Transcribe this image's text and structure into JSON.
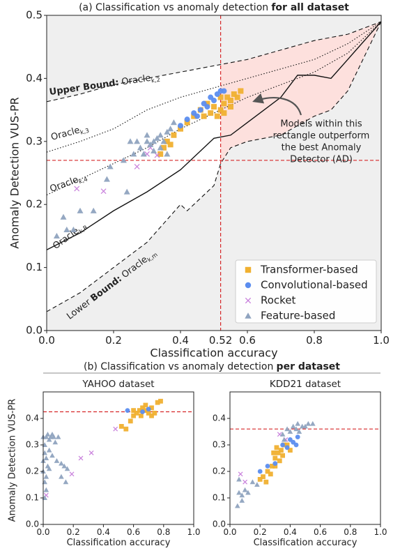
{
  "chart_data": [
    {
      "type": "scatter",
      "title": {
        "pre": "(a) Classification vs anomaly detection",
        "bold": "for all dataset"
      },
      "xlabel": "Classification accuracy",
      "ylabel": "Anomaly Detection VUS-PR",
      "xlim": [
        0,
        1
      ],
      "ylim": [
        0,
        0.5
      ],
      "xticks": [
        {
          "value": 0,
          "label": "0.0"
        },
        0.2,
        0.4,
        0.6,
        0.8,
        {
          "value": 1,
          "label": "1.0"
        }
      ],
      "yticks": [
        {
          "value": 0,
          "label": "0.0"
        },
        0.1,
        0.2,
        0.3,
        0.4,
        0.5
      ],
      "vline": 0.52,
      "hline": 0.27,
      "ref_color": "#d62728",
      "annotation": [
        "Models within this",
        "rectangle outperform",
        "the best Anomaly",
        "Detector (AD)"
      ],
      "legend": "lower right",
      "lines": [
        {
          "label": {
            "bold": "Upper Bound:",
            "name": "Oracle",
            "sub": "k,2"
          },
          "style": "dashed",
          "x": [
            0,
            0.1,
            0.2,
            0.3,
            0.4,
            0.5,
            0.6,
            0.7,
            0.8,
            0.9,
            1
          ],
          "y": [
            0.363,
            0.375,
            0.39,
            0.4,
            0.41,
            0.42,
            0.43,
            0.445,
            0.46,
            0.47,
            0.49
          ]
        },
        {
          "label": {
            "name": "Oracle",
            "sub": "k,3"
          },
          "style": "dotted",
          "x": [
            0,
            0.1,
            0.2,
            0.3,
            0.4,
            0.5,
            0.6,
            0.7,
            0.8,
            0.9,
            1
          ],
          "y": [
            0.283,
            0.3,
            0.32,
            0.35,
            0.37,
            0.385,
            0.4,
            0.415,
            0.43,
            0.455,
            0.49
          ]
        },
        {
          "label": {
            "name": "Oracle",
            "sub": "k,4"
          },
          "style": "dotted",
          "x": [
            0,
            0.1,
            0.2,
            0.3,
            0.4,
            0.5,
            0.6,
            0.7,
            0.8,
            0.9,
            1
          ],
          "y": [
            0.215,
            0.24,
            0.265,
            0.29,
            0.32,
            0.345,
            0.37,
            0.39,
            0.41,
            0.44,
            0.49
          ]
        },
        {
          "label": {
            "name": "Oracle",
            "sub": "k,R"
          },
          "style": "solid",
          "x": [
            0,
            0.1,
            0.2,
            0.3,
            0.4,
            0.5,
            0.55,
            0.6,
            0.7,
            0.75,
            0.8,
            0.85,
            0.9,
            1
          ],
          "y": [
            0.128,
            0.155,
            0.19,
            0.22,
            0.255,
            0.305,
            0.31,
            0.33,
            0.37,
            0.405,
            0.405,
            0.4,
            0.43,
            0.49
          ]
        },
        {
          "label": {
            "pre": "Lower",
            "bold": "Bound:",
            "name": "Oracle",
            "sub": "k,m"
          },
          "style": "dashed",
          "x": [
            0,
            0.1,
            0.2,
            0.3,
            0.35,
            0.4,
            0.42,
            0.5,
            0.52,
            0.55,
            0.6,
            0.7,
            0.8,
            0.85,
            0.9,
            1
          ],
          "y": [
            0.03,
            0.06,
            0.1,
            0.14,
            0.17,
            0.2,
            0.19,
            0.23,
            0.265,
            0.29,
            0.3,
            0.31,
            0.34,
            0.35,
            0.38,
            0.49
          ]
        }
      ],
      "series": [
        {
          "name": "Transformer-based",
          "color": "#f0b030",
          "marker": "square",
          "x": [
            0.34,
            0.36,
            0.38,
            0.4,
            0.42,
            0.44,
            0.46,
            0.48,
            0.5,
            0.52,
            0.53,
            0.54,
            0.55,
            0.56,
            0.57,
            0.58,
            0.52,
            0.51,
            0.49,
            0.47,
            0.35,
            0.37,
            0.55,
            0.53
          ],
          "y": [
            0.28,
            0.3,
            0.31,
            0.32,
            0.33,
            0.34,
            0.35,
            0.36,
            0.355,
            0.35,
            0.36,
            0.37,
            0.365,
            0.375,
            0.37,
            0.38,
            0.37,
            0.34,
            0.345,
            0.34,
            0.29,
            0.295,
            0.355,
            0.345
          ]
        },
        {
          "name": "Convolutional-based",
          "color": "#5b8def",
          "marker": "circle",
          "x": [
            0.4,
            0.42,
            0.44,
            0.46,
            0.48,
            0.5,
            0.51,
            0.52,
            0.53,
            0.45,
            0.47,
            0.49
          ],
          "y": [
            0.325,
            0.335,
            0.345,
            0.35,
            0.355,
            0.365,
            0.375,
            0.38,
            0.38,
            0.34,
            0.36,
            0.37
          ]
        },
        {
          "name": "Rocket",
          "color": "#c77ddb",
          "marker": "cross",
          "x": [
            0.09,
            0.17,
            0.3,
            0.33,
            0.27,
            0.31
          ],
          "y": [
            0.225,
            0.221,
            0.28,
            0.278,
            0.26,
            0.29
          ]
        },
        {
          "name": "Feature-based",
          "color": "#8fa3bf",
          "marker": "triangle",
          "x": [
            0.03,
            0.06,
            0.08,
            0.05,
            0.1,
            0.14,
            0.18,
            0.24,
            0.19,
            0.23,
            0.25,
            0.27,
            0.28,
            0.3,
            0.31,
            0.32,
            0.33,
            0.34,
            0.35,
            0.36,
            0.26,
            0.29,
            0.32,
            0.37,
            0.38,
            0.3,
            0.34,
            0.36
          ],
          "y": [
            0.15,
            0.16,
            0.16,
            0.18,
            0.19,
            0.19,
            0.24,
            0.22,
            0.26,
            0.27,
            0.3,
            0.3,
            0.29,
            0.31,
            0.295,
            0.3,
            0.305,
            0.31,
            0.3,
            0.315,
            0.28,
            0.28,
            0.285,
            0.32,
            0.33,
            0.3,
            0.29,
            0.28
          ]
        }
      ]
    },
    {
      "type": "scatter",
      "title": "YAHOO dataset",
      "xlabel": "Classification accuracy",
      "ylabel": "Anomaly Detection VUS-PR",
      "section": {
        "pre": "(b) Classification vs anomaly detection",
        "bold": "per dataset"
      },
      "xlim": [
        0,
        1
      ],
      "ylim": [
        0,
        0.5
      ],
      "xticks": [
        {
          "value": 0,
          "label": "0.0"
        },
        0.2,
        0.4,
        0.6,
        0.8,
        {
          "value": 1,
          "label": "1.0"
        }
      ],
      "yticks": [
        {
          "value": 0,
          "label": "0.0"
        },
        0.1,
        0.2,
        0.3,
        0.4
      ],
      "hline": 0.425,
      "ref_color": "#d62728",
      "series": [
        {
          "name": "Transformer-based",
          "color": "#f0b030",
          "marker": "square",
          "x": [
            0.52,
            0.55,
            0.58,
            0.6,
            0.62,
            0.64,
            0.66,
            0.68,
            0.7,
            0.72,
            0.74,
            0.76,
            0.78,
            0.65,
            0.68,
            0.72,
            0.6
          ],
          "y": [
            0.37,
            0.36,
            0.39,
            0.41,
            0.42,
            0.43,
            0.44,
            0.43,
            0.42,
            0.44,
            0.42,
            0.46,
            0.465,
            0.41,
            0.45,
            0.41,
            0.43
          ]
        },
        {
          "name": "Convolutional-based",
          "color": "#5b8def",
          "marker": "circle",
          "x": [
            0.56,
            0.66,
            0.7
          ],
          "y": [
            0.43,
            0.425,
            0.435
          ]
        },
        {
          "name": "Rocket",
          "color": "#c77ddb",
          "marker": "cross",
          "x": [
            0.02,
            0.19,
            0.25,
            0.32,
            0.48
          ],
          "y": [
            0.11,
            0.19,
            0.25,
            0.27,
            0.36
          ]
        },
        {
          "name": "Feature-based",
          "color": "#8fa3bf",
          "marker": "triangle",
          "x": [
            0,
            0.01,
            0.02,
            0.03,
            0.04,
            0.05,
            0.06,
            0.07,
            0.08,
            0.1,
            0.01,
            0.02,
            0.03,
            0,
            0.01,
            0.02,
            0.01,
            0.04,
            0.06,
            0.09,
            0.12,
            0.14,
            0.16,
            0.12,
            0.15,
            0.02,
            0,
            0.04
          ],
          "y": [
            0.33,
            0.3,
            0.33,
            0.34,
            0.32,
            0.33,
            0.34,
            0.33,
            0.31,
            0.33,
            0.27,
            0.25,
            0.22,
            0.2,
            0.16,
            0.13,
            0.1,
            0.28,
            0.26,
            0.24,
            0.23,
            0.22,
            0.21,
            0.18,
            0.16,
            0.18,
            0.24,
            0.21
          ]
        }
      ]
    },
    {
      "type": "scatter",
      "title": "KDD21 dataset",
      "xlabel": "Classification accuracy",
      "xlim": [
        0,
        1
      ],
      "ylim": [
        0,
        0.5
      ],
      "xticks": [
        {
          "value": 0,
          "label": "0.0"
        },
        0.2,
        0.4,
        0.6,
        0.8,
        {
          "value": 1,
          "label": "1.0"
        }
      ],
      "yticks": [
        {
          "value": 0,
          "label": "0.0"
        },
        0.1,
        0.2,
        0.3,
        0.4
      ],
      "hline": 0.36,
      "ref_color": "#d62728",
      "series": [
        {
          "name": "Transformer-based",
          "color": "#f0b030",
          "marker": "square",
          "x": [
            0.2,
            0.22,
            0.25,
            0.28,
            0.3,
            0.32,
            0.34,
            0.36,
            0.38,
            0.3,
            0.27,
            0.33,
            0.35,
            0.4,
            0.31,
            0.29,
            0.24
          ],
          "y": [
            0.17,
            0.18,
            0.2,
            0.22,
            0.25,
            0.27,
            0.28,
            0.3,
            0.3,
            0.22,
            0.19,
            0.24,
            0.26,
            0.28,
            0.29,
            0.27,
            0.16
          ]
        },
        {
          "name": "Convolutional-based",
          "color": "#5b8def",
          "marker": "circle",
          "x": [
            0.2,
            0.25,
            0.3,
            0.35,
            0.4,
            0.42,
            0.45,
            0.38,
            0.44
          ],
          "y": [
            0.2,
            0.22,
            0.23,
            0.3,
            0.32,
            0.31,
            0.33,
            0.29,
            0.3
          ]
        },
        {
          "name": "Rocket",
          "color": "#c77ddb",
          "marker": "cross",
          "x": [
            0.07,
            0.1,
            0.33,
            0.37
          ],
          "y": [
            0.19,
            0.16,
            0.34,
            0.32
          ]
        },
        {
          "name": "Feature-based",
          "color": "#8fa3bf",
          "marker": "triangle",
          "x": [
            0.05,
            0.06,
            0.08,
            0.1,
            0.15,
            0.18,
            0.35,
            0.38,
            0.4,
            0.42,
            0.45,
            0.48,
            0.5,
            0.52,
            0.55,
            0.44,
            0.46,
            0.36,
            0.12,
            0.08,
            0.06
          ],
          "y": [
            0.07,
            0.12,
            0.11,
            0.13,
            0.16,
            0.15,
            0.34,
            0.36,
            0.35,
            0.37,
            0.38,
            0.37,
            0.37,
            0.38,
            0.38,
            0.36,
            0.35,
            0.32,
            0.12,
            0.09,
            0.17
          ]
        }
      ]
    }
  ]
}
